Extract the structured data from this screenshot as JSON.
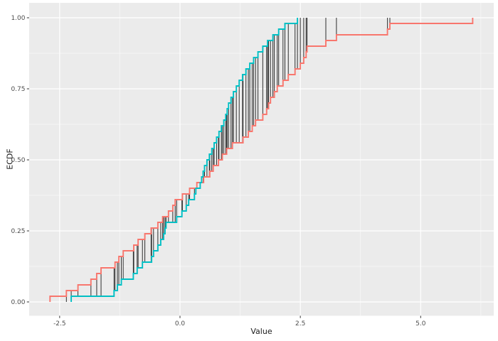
{
  "figure": {
    "background": "#FFFFFF",
    "panel_background": "#EBEBEB",
    "grid_major_color": "#FFFFFF",
    "grid_minor_color": "#FFFFFF",
    "tick_mark_color": "#333333",
    "tick_label_color": "#4D4D4D",
    "axis_title_color": "#1A1A1A"
  },
  "axes": {
    "x": {
      "title": "Value",
      "tick_values": [
        -2.5,
        0.0,
        2.5,
        5.0
      ],
      "tick_labels": [
        "-2.5",
        "0.0",
        "2.5",
        "5.0"
      ],
      "minor_values": [
        -1.25,
        1.25,
        3.75,
        6.25
      ]
    },
    "y": {
      "title": "ECDF",
      "tick_values": [
        0.0,
        0.25,
        0.5,
        0.75,
        1.0
      ],
      "tick_labels": [
        "0.00",
        "0.25",
        "0.50",
        "0.75",
        "1.00"
      ],
      "minor_values": [
        0.125,
        0.375,
        0.625,
        0.875
      ]
    }
  },
  "chart_data": {
    "type": "line",
    "subtype": "ecdf_step_comparison",
    "title": "",
    "xlabel": "Value",
    "ylabel": "ECDF",
    "x_range_shown": [
      -3.1,
      6.5
    ],
    "y_range_shown": [
      -0.05,
      1.05
    ],
    "grid": "on",
    "legend": "none",
    "series": [
      {
        "name": "ecdf-red",
        "color": "#F8766D",
        "n": 50,
        "values": [
          -2.7,
          -2.36,
          -2.12,
          -1.85,
          -1.73,
          -1.64,
          -1.35,
          -1.27,
          -1.18,
          -0.96,
          -0.87,
          -0.73,
          -0.6,
          -0.46,
          -0.36,
          -0.24,
          -0.15,
          -0.1,
          0.05,
          0.2,
          0.35,
          0.49,
          0.62,
          0.69,
          0.8,
          0.88,
          0.97,
          1.09,
          1.31,
          1.42,
          1.5,
          1.57,
          1.72,
          1.8,
          1.84,
          1.88,
          1.96,
          2.02,
          2.14,
          2.25,
          2.39,
          2.5,
          2.57,
          2.62,
          2.64,
          3.03,
          3.25,
          4.31,
          4.36,
          6.08
        ]
      },
      {
        "name": "ecdf-cyan",
        "color": "#00BFC4",
        "n": 50,
        "values": [
          -2.26,
          -1.37,
          -1.3,
          -1.22,
          -0.97,
          -0.89,
          -0.78,
          -0.59,
          -0.55,
          -0.46,
          -0.4,
          -0.34,
          -0.31,
          -0.29,
          -0.07,
          0.04,
          0.13,
          0.18,
          0.3,
          0.33,
          0.42,
          0.45,
          0.48,
          0.51,
          0.56,
          0.61,
          0.66,
          0.71,
          0.76,
          0.81,
          0.86,
          0.91,
          0.95,
          0.98,
          1.01,
          1.06,
          1.11,
          1.17,
          1.23,
          1.3,
          1.37,
          1.45,
          1.53,
          1.62,
          1.72,
          1.82,
          1.93,
          2.05,
          2.18,
          2.44
        ]
      }
    ],
    "difference_segments": {
      "color": "#1A1A1A",
      "at": "union_of_sample_points"
    }
  }
}
